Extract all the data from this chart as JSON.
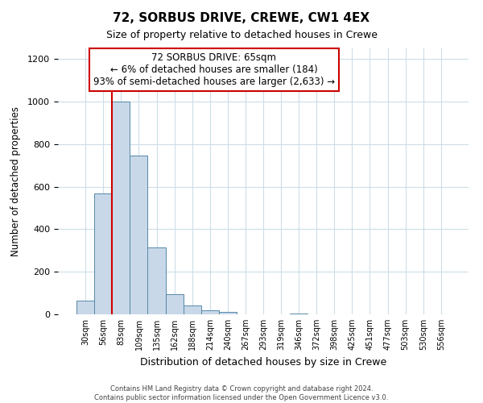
{
  "title": "72, SORBUS DRIVE, CREWE, CW1 4EX",
  "subtitle": "Size of property relative to detached houses in Crewe",
  "xlabel": "Distribution of detached houses by size in Crewe",
  "ylabel": "Number of detached properties",
  "bin_labels": [
    "30sqm",
    "56sqm",
    "83sqm",
    "109sqm",
    "135sqm",
    "162sqm",
    "188sqm",
    "214sqm",
    "240sqm",
    "267sqm",
    "293sqm",
    "319sqm",
    "346sqm",
    "372sqm",
    "398sqm",
    "425sqm",
    "451sqm",
    "477sqm",
    "503sqm",
    "530sqm",
    "556sqm"
  ],
  "bar_heights": [
    65,
    570,
    1000,
    745,
    315,
    95,
    40,
    20,
    10,
    0,
    0,
    0,
    5,
    0,
    0,
    0,
    0,
    0,
    0,
    0,
    0
  ],
  "bar_color": "#c8d8e8",
  "bar_edgecolor": "#5588aa",
  "vline_x_idx": 1,
  "vline_color": "#cc0000",
  "ylim": [
    0,
    1250
  ],
  "yticks": [
    0,
    200,
    400,
    600,
    800,
    1000,
    1200
  ],
  "annotation_title": "72 SORBUS DRIVE: 65sqm",
  "annotation_line2": "← 6% of detached houses are smaller (184)",
  "annotation_line3": "93% of semi-detached houses are larger (2,633) →",
  "annotation_box_color": "#ffffff",
  "annotation_box_edgecolor": "#cc0000",
  "footer_line1": "Contains HM Land Registry data © Crown copyright and database right 2024.",
  "footer_line2": "Contains public sector information licensed under the Open Government Licence v3.0.",
  "background_color": "#ffffff",
  "grid_color": "#ccdde8"
}
